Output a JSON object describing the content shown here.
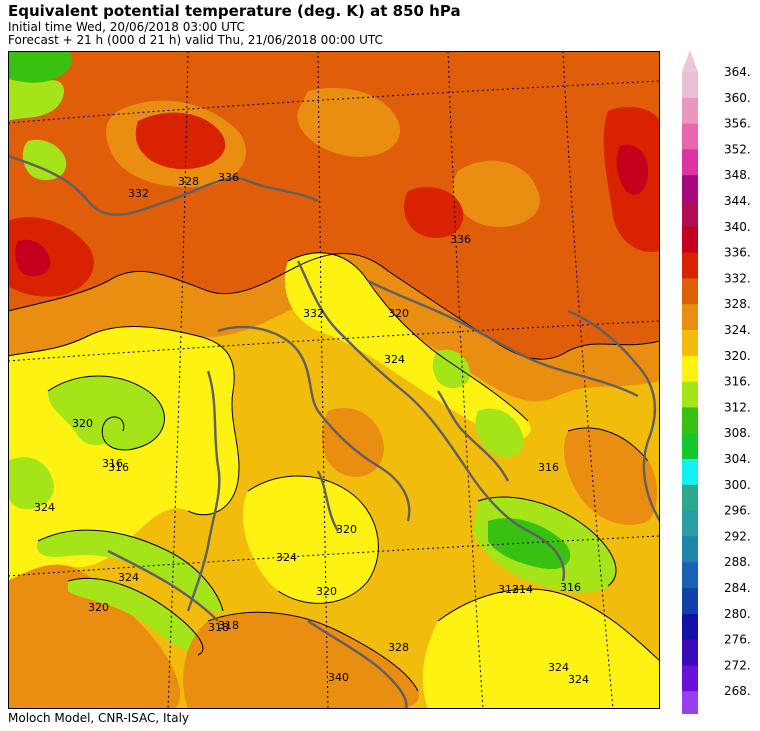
{
  "header": {
    "title": "Equivalent potential temperature (deg. K) at 850 hPa",
    "initial_time": "Initial time  Wed, 20/06/2018  03:00 UTC",
    "forecast": "Forecast  +  21 h  (000 d 21 h)  valid Thu, 21/06/2018 00:00 UTC"
  },
  "footer": "Moloch Model, CNR-ISAC, Italy",
  "legend": {
    "ticks": [
      "364.",
      "360.",
      "356.",
      "352.",
      "348.",
      "344.",
      "340.",
      "336.",
      "332.",
      "328.",
      "324.",
      "320.",
      "316.",
      "312.",
      "308.",
      "304.",
      "300.",
      "296.",
      "292.",
      "288.",
      "284.",
      "280.",
      "276.",
      "272.",
      "268."
    ],
    "colors": [
      "#ecc0d4",
      "#e898bd",
      "#ea64ae",
      "#dd34a3",
      "#a8087f",
      "#b20c55",
      "#c4001e",
      "#d82200",
      "#e05d0a",
      "#ea8e12",
      "#f2bc0c",
      "#fdf212",
      "#a6e41a",
      "#39c112",
      "#15c82d",
      "#12f1f2",
      "#2aa98d",
      "#299da4",
      "#2083aa",
      "#1a61b4",
      "#1241ac",
      "#1212aa",
      "#3c0ab9",
      "#6a12dc",
      "#9a3cf0"
    ],
    "low_end_color": "#c890f0",
    "high_end_color": "#eec4d8"
  },
  "map": {
    "contour_labels": [
      "316",
      "320",
      "324",
      "328",
      "332",
      "336",
      "312",
      "314",
      "324",
      "316",
      "320",
      "324",
      "318",
      "320",
      "324",
      "328",
      "332",
      "336",
      "340",
      "316",
      "320",
      "324",
      "318",
      "316",
      "320",
      "324"
    ]
  }
}
